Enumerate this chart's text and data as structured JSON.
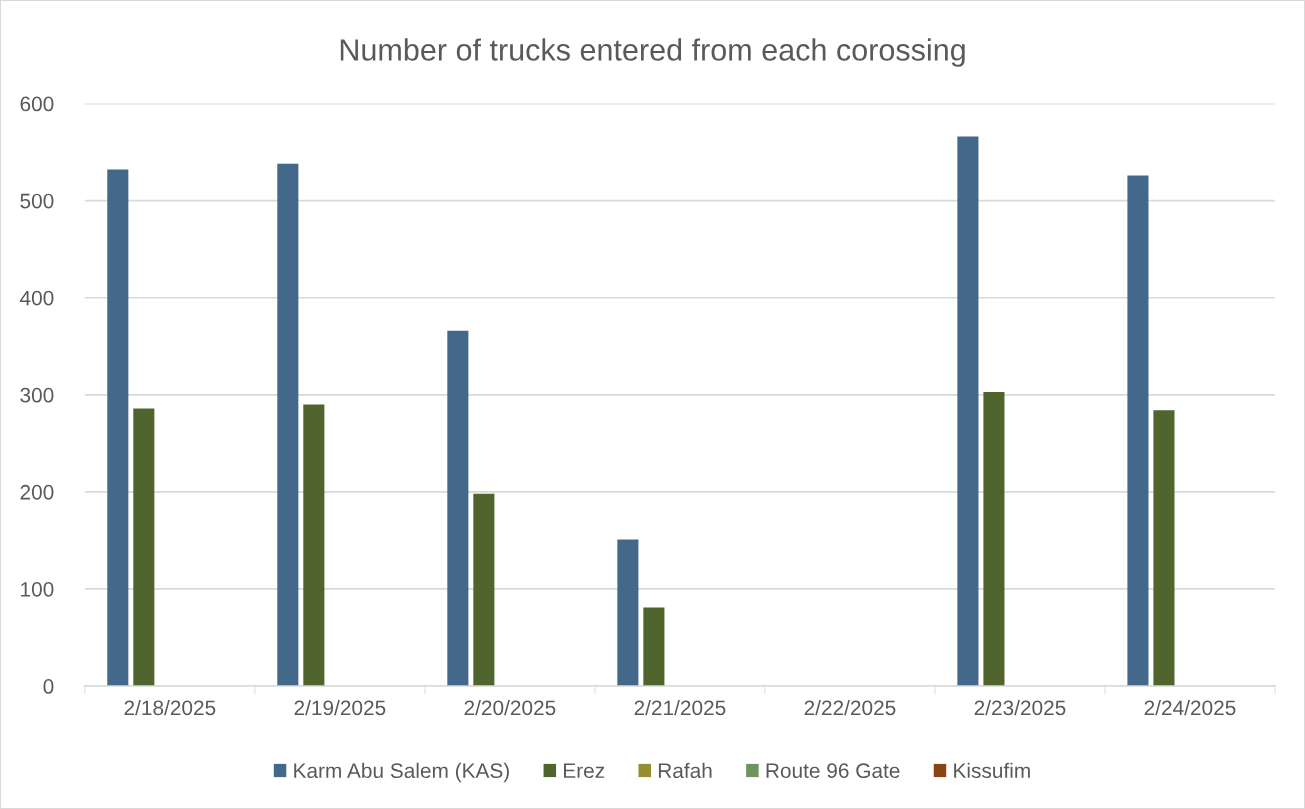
{
  "chart_data": {
    "type": "bar",
    "title": "Number of trucks entered from each corossing",
    "categories": [
      "2/18/2025",
      "2/19/2025",
      "2/20/2025",
      "2/21/2025",
      "2/22/2025",
      "2/23/2025",
      "2/24/2025"
    ],
    "series": [
      {
        "name": "Karm Abu Salem (KAS)",
        "color": "#44688a",
        "values": [
          532,
          538,
          366,
          151,
          0,
          566,
          526
        ]
      },
      {
        "name": "Erez",
        "color": "#4f652d",
        "values": [
          286,
          290,
          198,
          81,
          0,
          303,
          284
        ]
      },
      {
        "name": "Rafah",
        "color": "#948f2c",
        "values": [
          0,
          0,
          0,
          0,
          0,
          0,
          0
        ]
      },
      {
        "name": "Route 96 Gate",
        "color": "#6e9462",
        "values": [
          0,
          0,
          0,
          0,
          0,
          0,
          0
        ]
      },
      {
        "name": "Kissufim",
        "color": "#8a4316",
        "values": [
          0,
          0,
          0,
          0,
          0,
          0,
          0
        ]
      }
    ],
    "ylim": [
      0,
      600
    ],
    "yticks": [
      0,
      100,
      200,
      300,
      400,
      500,
      600
    ],
    "grid": "y",
    "legend": "bottom"
  }
}
